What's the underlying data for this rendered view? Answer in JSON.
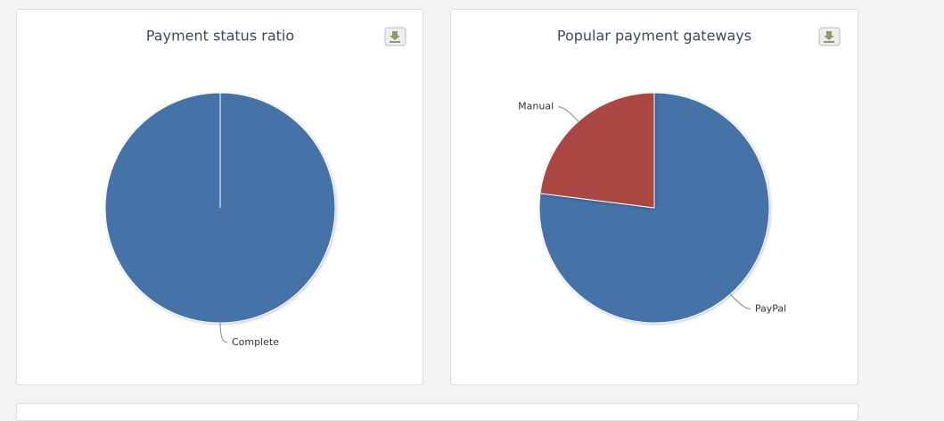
{
  "chart_data": [
    {
      "type": "pie",
      "title": "Payment status ratio",
      "categories": [
        "Complete"
      ],
      "values": [
        100
      ],
      "colors": [
        "#4572a7"
      ]
    },
    {
      "type": "pie",
      "title": "Popular payment gateways",
      "categories": [
        "PayPal",
        "Manual"
      ],
      "values": [
        77,
        23
      ],
      "colors": [
        "#4572a7",
        "#aa4643"
      ]
    }
  ]
}
